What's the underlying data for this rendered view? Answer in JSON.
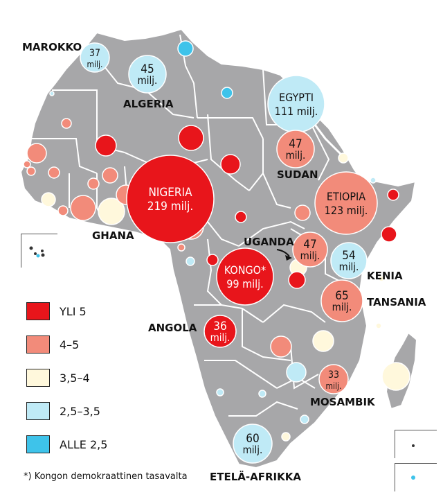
{
  "colors": {
    "land": "#a7a7a9",
    "border": "#ffffff",
    "yli5": "#e8151b",
    "c4_5": "#f28b7a",
    "c35_4": "#fff8dc",
    "c25_35": "#bfeaf6",
    "alle25": "#3ec3ea"
  },
  "legend": [
    {
      "label": "YLI 5",
      "color_key": "yli5"
    },
    {
      "label": "4–5",
      "color_key": "c4_5"
    },
    {
      "label": "3,5–4",
      "color_key": "c35_4"
    },
    {
      "label": "2,5–3,5",
      "color_key": "c25_35"
    },
    {
      "label": "ALLE 2,5",
      "color_key": "alle25"
    }
  ],
  "footnote": "*) Kongon demokraattinen tasavalta",
  "country_labels": {
    "marokko": "MAROKKO",
    "algeria": "ALGERIA",
    "sudan": "SUDAN",
    "ghana": "GHANA",
    "uganda": "UGANDA",
    "kenia": "KENIA",
    "tansania": "TANSANIA",
    "angola": "ANGOLA",
    "mosambik": "MOSAMBIK",
    "etela_afrikka": "ETELÄ-AFRIKKA"
  },
  "bubbles": {
    "marokko": {
      "value": "37",
      "unit": "milj.",
      "category": "c25_35"
    },
    "algeria": {
      "value": "45",
      "unit": "milj.",
      "category": "c25_35"
    },
    "egypti": {
      "name": "EGYPTI",
      "value": "111 milj.",
      "category": "c25_35"
    },
    "sudan": {
      "value": "47",
      "unit": "milj.",
      "category": "c4_5"
    },
    "etiopia": {
      "name": "ETIOPIA",
      "value": "123 milj.",
      "category": "c4_5"
    },
    "nigeria": {
      "name": "NIGERIA",
      "value": "219 milj.",
      "category": "yli5"
    },
    "kongo": {
      "name": "KONGO*",
      "value": "99 milj.",
      "category": "yli5"
    },
    "uganda": {
      "value": "47",
      "unit": "milj.",
      "category": "c4_5"
    },
    "kenia": {
      "value": "54",
      "unit": "milj.",
      "category": "c25_35"
    },
    "tansania": {
      "value": "65",
      "unit": "milj.",
      "category": "c4_5"
    },
    "angola": {
      "value": "36",
      "unit": "milj.",
      "category": "yli5"
    },
    "mosambik": {
      "value": "33",
      "unit": "milj.",
      "category": "c4_5"
    },
    "etela_afrikka": {
      "value": "60",
      "unit": "milj.",
      "category": "c25_35"
    }
  }
}
